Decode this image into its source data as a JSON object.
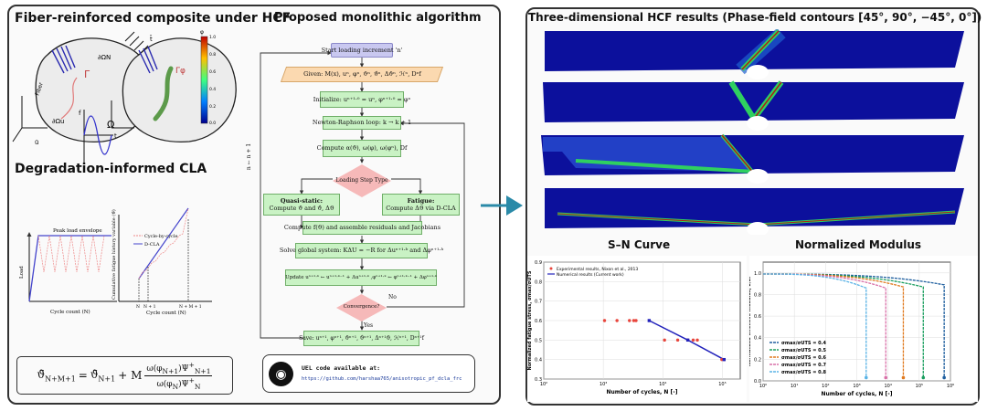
{
  "left_panel": {
    "composite_title": "Fiber-reinforced composite under HCF",
    "diagram_labels": {
      "gamma": "Γ",
      "gamma_phi": "Γφ",
      "omega": "Ω",
      "dOmega_N": "∂ΩN",
      "dOmega_u": "∂Ωu",
      "fiber": "Fiber",
      "u_bar": "ū",
      "t_bar": "t̄",
      "time_axis": "t",
      "load_axis": "f"
    },
    "colorbar": {
      "symbol": "φ",
      "ticks": [
        "1.0",
        "0.8",
        "0.6",
        "0.4",
        "0.2",
        "0.0"
      ]
    },
    "cla_title": "Degradation-informed CLA",
    "load_plot": {
      "title": "Peak load envelope",
      "ylabel": "Load",
      "xlabel": "Cycle count (N)"
    },
    "cla_plot": {
      "ylabel": "Cumulative fatigue history variable (ϑ̄)",
      "xlabel": "Cycle count (N)",
      "legend": [
        "Cycle-by-cycle",
        "D-CLA"
      ],
      "ticks": [
        "N",
        "N + 1",
        "N + M + 1"
      ]
    },
    "formula": {
      "lhs": "ϑ̄",
      "lhs_sub": "N+M+1",
      "eq": "=",
      "t1": "ϑ̄",
      "t1_sub": "N+1",
      "plus": "+ M",
      "num": "ω(φ",
      "num_sub": "N+1",
      "num_mid": ")Ψ",
      "num_sup": "+",
      "num_sub2": "N+1",
      "den": "ω(φ",
      "den_sub": "N",
      "den_mid": ")Ψ",
      "den_sup": "+",
      "den_sub2": "N"
    }
  },
  "flowchart": {
    "title": "Proposed monolithic algorithm",
    "start": "Start loading increment 'n'",
    "given": "Given: M(x), uⁿ, φⁿ, ϑⁿ, ϑ̇ⁿ, Δϑⁿ, ℋⁿ, Dⁿf",
    "initialize": "Initialize: uⁿ⁺¹·⁰ = uⁿ, φⁿ⁺¹·⁰ = φⁿ",
    "newton": "Newton-Raphson loop: k → k + 1",
    "compute1": "Compute α(ϑ), ω(φ), ω(φⁿ), Df",
    "decision1": "Loading Step Type",
    "quasi_title": "Quasi-static:",
    "quasi_body": "Compute ϑ and ϑ̇, Δϑ",
    "fatigue_title": "Fatigue:",
    "fatigue_body": "Compute Δϑ via D-CLA",
    "compute2": "Compute f(ϑ) and assemble residuals and Jacobians",
    "solve": "Solve global system: KΔU = −R for Δuⁿ⁺¹·ᵏ and Δφⁿ⁺¹·ᵏ",
    "update": "Update uⁿ⁺¹·ᵏ ← uⁿ⁺¹·ᵏ⁻¹ + Δuⁿ⁺¹·ᵏ ,φⁿ⁺¹·ᵏ ← φⁿ⁺¹·ᵏ⁻¹ + Δφⁿ⁺¹·ᵏ",
    "decision2": "Convergence?",
    "no": "No",
    "yes": "Yes",
    "save": "Save: uⁿ⁺¹, φⁿ⁺¹, ϑⁿ⁺¹, ϑ̇ⁿ⁺¹, Δⁿ⁺¹ϑ, ℋⁿ⁺¹, Dⁿ⁺¹f",
    "loop_label": "n ← n + 1",
    "code_title": "UEL code available at:",
    "code_url": "https://github.com/harshaa765/anisotropic_pf_dcla_frc"
  },
  "right_panel": {
    "title": "Three-dimensional HCF results (Phase-field contours [45°, 90°, −45°, 0°])",
    "sn_title": "S–N Curve",
    "mod_title": "Normalized Modulus"
  },
  "colors": {
    "accent_arrow": "#2a8aa8",
    "box_green": "#c9f2c4",
    "box_peach": "#fbd9b0",
    "box_purple": "#c9c8f0",
    "diamond_pink": "#f6b9b9",
    "contour_blue": "#0c109c"
  },
  "chart_data": [
    {
      "type": "scatter",
      "title": "S–N Curve",
      "xlabel": "Number of cycles, N [-]",
      "ylabel": "Normalized fatigue stress, σmax/σUTS",
      "xscale": "log",
      "xlim": [
        100,
        200000
      ],
      "ylim": [
        0.3,
        0.9
      ],
      "xticks": [
        "10²",
        "10³",
        "10⁴",
        "10⁵"
      ],
      "yticks": [
        "0.3",
        "0.4",
        "0.5",
        "0.6",
        "0.7",
        "0.8",
        "0.9"
      ],
      "grid": true,
      "legend_position": "top-left",
      "series": [
        {
          "name": "Experimental results, Nixon et al., 2013",
          "color": "#e8453c",
          "marker": "circle",
          "x": [
            1050,
            1700,
            2750,
            3250,
            3550,
            10700,
            17800,
            26300,
            32400,
            38000,
            98000,
            107000
          ],
          "y": [
            0.6,
            0.6,
            0.6,
            0.6,
            0.6,
            0.5,
            0.5,
            0.5,
            0.5,
            0.5,
            0.4,
            0.4
          ]
        },
        {
          "name": "Numerical results (Current work)",
          "color": "#2222bb",
          "marker": "square",
          "line": true,
          "x": [
            5900,
            26300,
            107000
          ],
          "y": [
            0.6,
            0.5,
            0.4
          ]
        }
      ]
    },
    {
      "type": "line",
      "title": "Normalized Modulus",
      "xlabel": "Number of cycles, N [-]",
      "ylabel": "Normalized effective modulus, E/E₀",
      "xscale": "log",
      "xlim": [
        1,
        1000000
      ],
      "ylim": [
        0,
        1.1
      ],
      "xticks": [
        "10⁰",
        "10¹",
        "10²",
        "10³",
        "10⁴",
        "10⁵",
        "10⁶"
      ],
      "yticks": [
        "0.0",
        "0.2",
        "0.4",
        "0.6",
        "0.8",
        "1.0"
      ],
      "grid": true,
      "legend_position": "bottom-left",
      "series": [
        {
          "name": "σmax/σUTS = 0.4",
          "color": "#1f5f9f",
          "start": 0.99,
          "final_before_failure": 0.89,
          "failure_cycles": 630000
        },
        {
          "name": "σmax/σUTS = 0.5",
          "color": "#1a9e5f",
          "start": 0.99,
          "final_before_failure": 0.87,
          "failure_cycles": 135000
        },
        {
          "name": "σmax/σUTS = 0.6",
          "color": "#e07a1f",
          "start": 0.99,
          "final_before_failure": 0.87,
          "failure_cycles": 31000
        },
        {
          "name": "σmax/σUTS = 0.7",
          "color": "#d970a8",
          "start": 0.99,
          "final_before_failure": 0.86,
          "failure_cycles": 8500
        },
        {
          "name": "σmax/σUTS = 0.8",
          "color": "#5ab3e6",
          "start": 0.99,
          "final_before_failure": 0.86,
          "failure_cycles": 2000
        }
      ]
    }
  ]
}
